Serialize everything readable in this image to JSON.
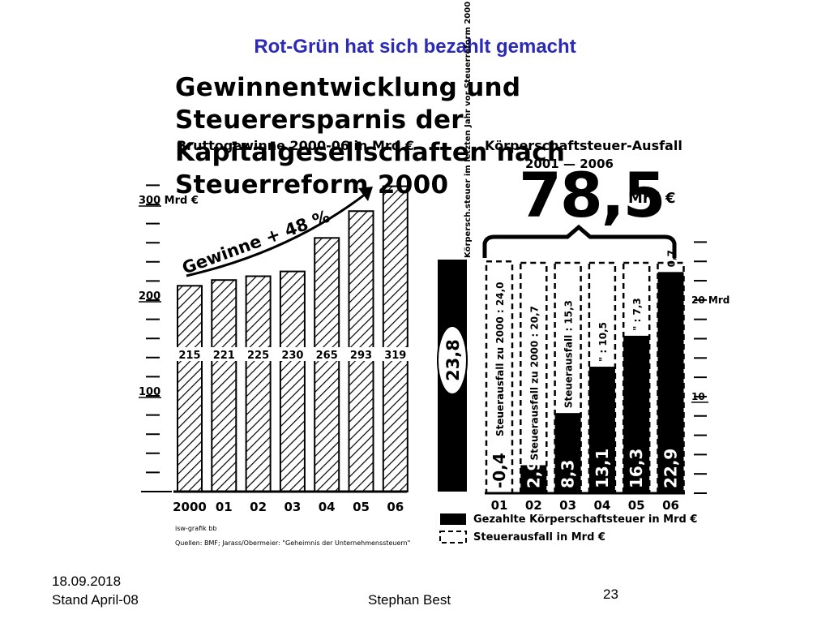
{
  "slide": {
    "title": "Rot-Grün hat sich bezahlt gemacht",
    "date": "18.09.2018",
    "stand": "Stand April-08",
    "author": "Stephan Best",
    "page_number": "23"
  },
  "chart_data": [
    {
      "type": "bar",
      "title": "Gewinnentwicklung und Steuerersparnis der Kapitalgesellschaften nach Steuerreform 2000",
      "subtitle": "Bruttogewinne 2000-06 in Mrd €",
      "categories": [
        "2000",
        "01",
        "02",
        "03",
        "04",
        "05",
        "06"
      ],
      "values": [
        215,
        221,
        225,
        230,
        265,
        293,
        319
      ],
      "ytick_labels": [
        "100",
        "200",
        "300 Mrd €"
      ],
      "ylim": [
        0,
        330
      ],
      "annotation": "Gewinne + 48 %",
      "reference_bar": {
        "label": "Körpersch.steuer im letzten Jahr vor Steuerreform 2000",
        "value": 23.8,
        "value_label": "23,8"
      }
    },
    {
      "type": "bar",
      "title": "Körperschaftsteuer-Ausfall",
      "period": "2001 — 2006",
      "total": "78,5",
      "total_unit": "Mrd €",
      "categories": [
        "01",
        "02",
        "03",
        "04",
        "05",
        "06"
      ],
      "series": [
        {
          "name": "Gezahlte Körperschaftsteuer in Mrd €",
          "values": [
            -0.4,
            2.9,
            8.3,
            13.1,
            16.3,
            22.9
          ],
          "labels": [
            "-0,4",
            "2,9",
            "8,3",
            "13,1",
            "16,3",
            "22,9"
          ]
        },
        {
          "name": "Steuerausfall in Mrd €",
          "values": [
            24.0,
            20.7,
            15.3,
            10.5,
            7.3,
            0.7
          ],
          "labels": [
            "Steuerausfall zu 2000 : 24,0",
            "Steuerausfall zu 2000 : 20,7",
            "Steuerausfall : 15,3",
            "\" : 10,5",
            "\" : 7,3",
            "0,7"
          ]
        }
      ],
      "ytick_labels": [
        "10",
        "20 Mrd"
      ],
      "ylim": [
        0,
        25
      ]
    }
  ],
  "sources": {
    "credit": "isw-grafik bb",
    "quellen": "Quellen: BMF; Jarass/Obermeier: \"Geheimnis der Unternehmenssteuern\""
  },
  "colors": {
    "title": "#2b2bb8",
    "ink": "#000000"
  }
}
